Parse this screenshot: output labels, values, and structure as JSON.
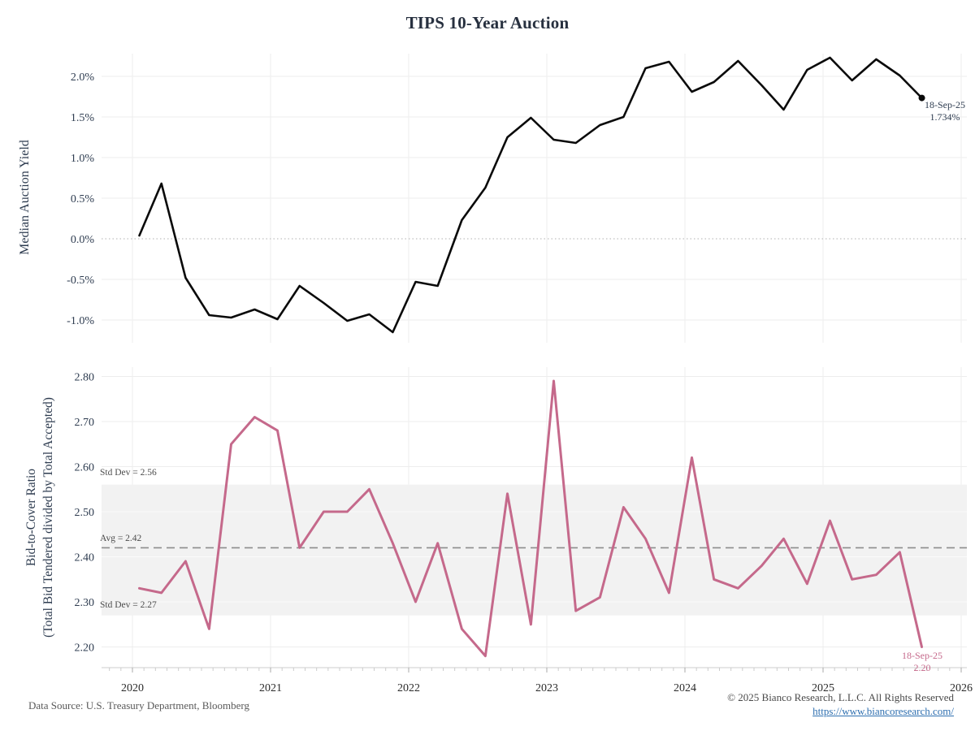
{
  "title": "TIPS 10-Year Auction",
  "colors": {
    "pink": "#c5698b",
    "black_line": "#0a0a0a",
    "title_color": "#27303f",
    "axis_text": "#2e3c50",
    "tick_text": "#2b2b2b",
    "gridline": "#ededed",
    "band_gray": "#f2f2f2",
    "avg_dash": "#8c8c8c",
    "zero_dot": "#c0c0c0",
    "link_blue": "#2e6fb0"
  },
  "xaxis": {
    "tick_labels": [
      "2020",
      "2021",
      "2022",
      "2023",
      "2024",
      "2025",
      "2026"
    ],
    "tick_values": [
      2020,
      2021,
      2022,
      2023,
      2024,
      2025,
      2026
    ]
  },
  "chart_data": [
    {
      "type": "line",
      "title": "TIPS 10-Year Auction",
      "ylabel": "Median Auction Yield",
      "legend_position": "none",
      "grid": true,
      "ylim": [
        -1.36,
        2.32
      ],
      "ytick_labels": [
        "2.0%",
        "1.5%",
        "1.0%",
        "0.5%",
        "0.0%",
        "-0.5%",
        "-1.0%"
      ],
      "ytick_values": [
        2.0,
        1.5,
        1.0,
        0.5,
        0.0,
        -0.5,
        -1.0
      ],
      "zero_line_value": 0.0,
      "x": [
        2020.05,
        2020.21,
        2020.385,
        2020.555,
        2020.715,
        2020.885,
        2021.05,
        2021.21,
        2021.385,
        2021.555,
        2021.715,
        2021.885,
        2022.05,
        2022.21,
        2022.385,
        2022.555,
        2022.715,
        2022.885,
        2023.05,
        2023.21,
        2023.385,
        2023.555,
        2023.715,
        2023.885,
        2024.05,
        2024.21,
        2024.385,
        2024.555,
        2024.715,
        2024.885,
        2025.05,
        2025.21,
        2025.385,
        2025.555,
        2025.715
      ],
      "y": [
        0.04,
        0.68,
        -0.48,
        -0.94,
        -0.97,
        -0.87,
        -0.99,
        -0.58,
        -0.79,
        -1.01,
        -0.93,
        -1.15,
        -0.53,
        -0.58,
        0.23,
        0.63,
        1.25,
        1.49,
        1.22,
        1.18,
        1.4,
        1.5,
        2.1,
        2.18,
        1.81,
        1.93,
        2.19,
        1.89,
        1.59,
        2.08,
        2.23,
        1.95,
        2.21,
        2.01,
        1.734
      ],
      "end_annotation": {
        "line1": "18-Sep-25",
        "line2": "1.734%"
      }
    },
    {
      "type": "line",
      "ylabel_line1": "Bid-to-Cover Ratio",
      "ylabel_line2": "(Total Bid Tendered divided by Total Accepted)",
      "legend_position": "none",
      "grid": true,
      "ylim": [
        2.13,
        2.84
      ],
      "ytick_labels": [
        "2.80",
        "2.70",
        "2.60",
        "2.50",
        "2.40",
        "2.30",
        "2.20"
      ],
      "ytick_values": [
        2.8,
        2.7,
        2.6,
        2.5,
        2.4,
        2.3,
        2.2
      ],
      "band": {
        "low": 2.27,
        "high": 2.56,
        "high_label": "Std Dev = 2.56",
        "low_label": "Std Dev = 2.27"
      },
      "avg": {
        "value": 2.42,
        "label": "Avg = 2.42"
      },
      "x": [
        2020.05,
        2020.21,
        2020.385,
        2020.555,
        2020.715,
        2020.885,
        2021.05,
        2021.21,
        2021.385,
        2021.555,
        2021.715,
        2021.885,
        2022.05,
        2022.21,
        2022.385,
        2022.555,
        2022.715,
        2022.885,
        2023.05,
        2023.21,
        2023.385,
        2023.555,
        2023.715,
        2023.885,
        2024.05,
        2024.21,
        2024.385,
        2024.555,
        2024.715,
        2024.885,
        2025.05,
        2025.21,
        2025.385,
        2025.555,
        2025.715
      ],
      "y": [
        2.33,
        2.32,
        2.39,
        2.24,
        2.65,
        2.71,
        2.68,
        2.42,
        2.5,
        2.5,
        2.55,
        2.43,
        2.3,
        2.43,
        2.24,
        2.18,
        2.54,
        2.25,
        2.79,
        2.28,
        2.31,
        2.51,
        2.44,
        2.32,
        2.62,
        2.35,
        2.33,
        2.38,
        2.44,
        2.34,
        2.48,
        2.35,
        2.36,
        2.41,
        2.2
      ],
      "end_annotation": {
        "line1": "18-Sep-25",
        "line2": "2.20"
      }
    }
  ],
  "footer": {
    "source": "Data Source: U.S. Treasury Department, Bloomberg",
    "copyright": "© 2025 Bianco Research, L.L.C. All Rights Reserved",
    "url": "https://www.biancoresearch.com/"
  }
}
